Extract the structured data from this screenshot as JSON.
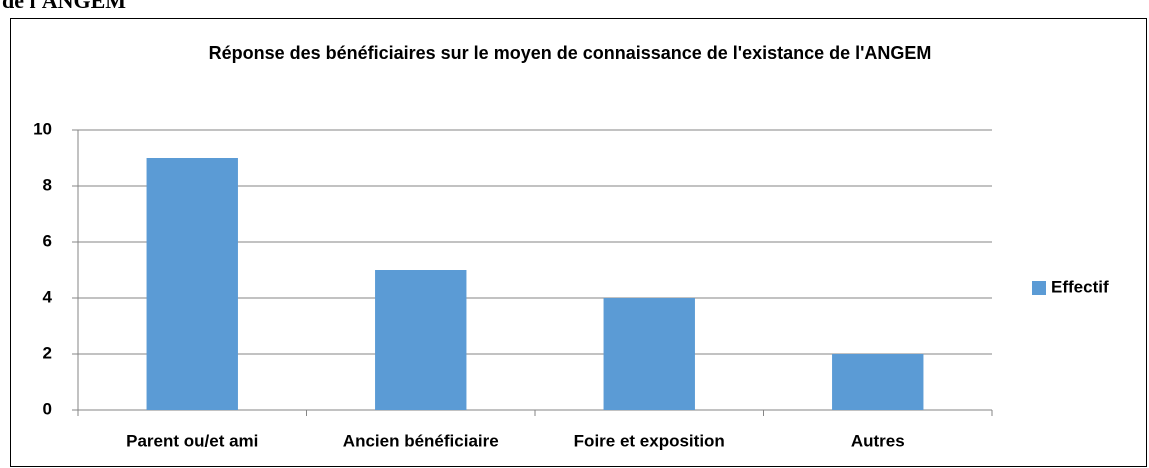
{
  "caption": "de l'ANGEM",
  "chart_data": {
    "type": "bar",
    "title": "Réponse des bénéficiaires sur le moyen de connaissance de l'existance de l'ANGEM",
    "categories": [
      "Parent ou/et ami",
      "Ancien bénéficiaire",
      "Foire et exposition",
      "Autres"
    ],
    "series": [
      {
        "name": "Effectif",
        "color": "#5b9bd5",
        "values": [
          9,
          5,
          4,
          2
        ]
      }
    ],
    "ylim": [
      0,
      10
    ],
    "yticks": [
      0,
      2,
      4,
      6,
      8,
      10
    ],
    "grid": true,
    "legend": "right"
  }
}
